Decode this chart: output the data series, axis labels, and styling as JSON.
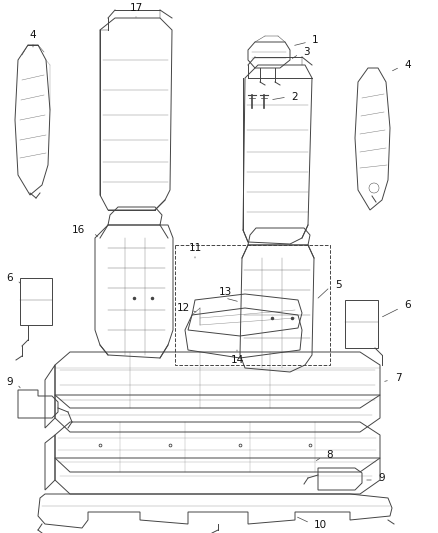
{
  "bg_color": "#ffffff",
  "line_color": "#444444",
  "label_color": "#111111",
  "lw": 0.7,
  "lw_thin": 0.35,
  "fs": 7.5
}
